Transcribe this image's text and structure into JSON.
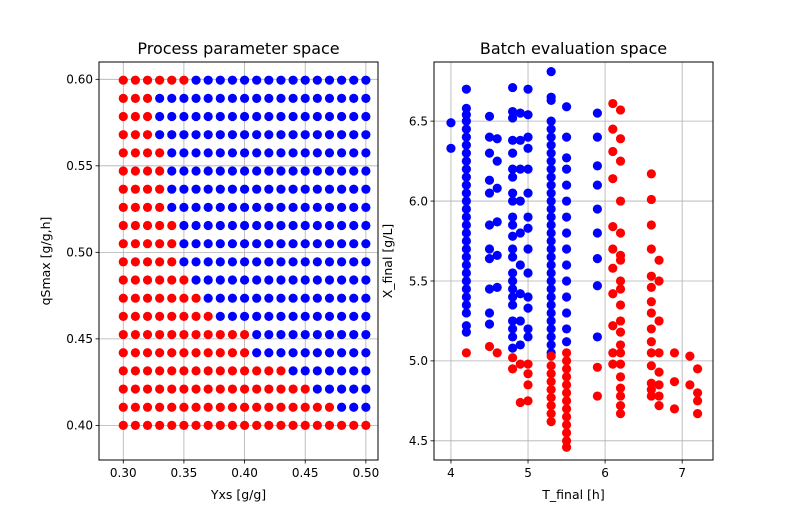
{
  "chart_data": [
    {
      "type": "scatter",
      "title": "Process parameter space",
      "xlabel": "Yxs [g/g]",
      "ylabel": "qSmax [g/g,h]",
      "xlim": [
        0.28,
        0.51
      ],
      "ylim": [
        0.38,
        0.61
      ],
      "xticks": [
        "0.30",
        "0.35",
        "0.40",
        "0.45",
        "0.50"
      ],
      "yticks": [
        "0.40",
        "0.45",
        "0.50",
        "0.55",
        "0.60"
      ],
      "grid": true,
      "colors": {
        "pass": "#0000ff",
        "fail": "#ff0000"
      },
      "grid_points": {
        "x_start": 0.3,
        "x_step": 0.01,
        "nx": 21,
        "y_start": 0.4,
        "y_step": 0.0105,
        "ny": 20
      },
      "red_count_per_row_from_bottom": [
        21,
        18,
        16,
        14,
        11,
        11,
        8,
        7,
        6,
        5,
        5,
        5,
        4,
        4,
        4,
        4,
        3,
        3,
        3,
        6
      ]
    },
    {
      "type": "scatter",
      "title": "Batch evaluation space",
      "xlabel": "T_final [h]",
      "ylabel": "X_final [g/L]",
      "xlim": [
        3.78,
        7.4
      ],
      "ylim": [
        4.38,
        6.87
      ],
      "xticks": [
        "4",
        "5",
        "6",
        "7"
      ],
      "yticks": [
        "4.5",
        "5.0",
        "5.5",
        "6.0",
        "6.5"
      ],
      "grid": true,
      "colors": {
        "pass": "#0000ff",
        "fail": "#ff0000"
      },
      "series": [
        {
          "color": "#0000ff",
          "points": [
            [
              4.0,
              6.49
            ],
            [
              4.0,
              6.33
            ],
            [
              4.2,
              6.7
            ],
            [
              4.2,
              6.58
            ],
            [
              4.2,
              6.54
            ],
            [
              4.2,
              6.5
            ],
            [
              4.2,
              6.45
            ],
            [
              4.2,
              6.4
            ],
            [
              4.2,
              6.35
            ],
            [
              4.2,
              6.3
            ],
            [
              4.2,
              6.25
            ],
            [
              4.2,
              6.2
            ],
            [
              4.2,
              6.15
            ],
            [
              4.2,
              6.1
            ],
            [
              4.2,
              6.05
            ],
            [
              4.2,
              6.0
            ],
            [
              4.2,
              5.95
            ],
            [
              4.2,
              5.9
            ],
            [
              4.2,
              5.85
            ],
            [
              4.2,
              5.8
            ],
            [
              4.2,
              5.75
            ],
            [
              4.2,
              5.7
            ],
            [
              4.2,
              5.65
            ],
            [
              4.2,
              5.6
            ],
            [
              4.2,
              5.55
            ],
            [
              4.2,
              5.5
            ],
            [
              4.2,
              5.45
            ],
            [
              4.2,
              5.4
            ],
            [
              4.2,
              5.35
            ],
            [
              4.2,
              5.3
            ],
            [
              4.2,
              5.22
            ],
            [
              4.2,
              5.18
            ],
            [
              4.5,
              6.53
            ],
            [
              4.5,
              6.4
            ],
            [
              4.5,
              6.3
            ],
            [
              4.5,
              6.13
            ],
            [
              4.5,
              6.05
            ],
            [
              4.5,
              5.85
            ],
            [
              4.5,
              5.7
            ],
            [
              4.5,
              5.64
            ],
            [
              4.5,
              5.45
            ],
            [
              4.5,
              5.3
            ],
            [
              4.5,
              5.23
            ],
            [
              4.6,
              6.39
            ],
            [
              4.6,
              6.25
            ],
            [
              4.6,
              6.08
            ],
            [
              4.6,
              5.87
            ],
            [
              4.6,
              5.66
            ],
            [
              4.6,
              5.46
            ],
            [
              4.8,
              6.71
            ],
            [
              4.8,
              6.56
            ],
            [
              4.8,
              6.52
            ],
            [
              4.8,
              6.38
            ],
            [
              4.8,
              6.3
            ],
            [
              4.8,
              6.2
            ],
            [
              4.8,
              6.15
            ],
            [
              4.8,
              6.05
            ],
            [
              4.8,
              6.0
            ],
            [
              4.8,
              5.9
            ],
            [
              4.8,
              5.85
            ],
            [
              4.8,
              5.78
            ],
            [
              4.8,
              5.7
            ],
            [
              4.8,
              5.65
            ],
            [
              4.8,
              5.55
            ],
            [
              4.8,
              5.5
            ],
            [
              4.8,
              5.45
            ],
            [
              4.8,
              5.4
            ],
            [
              4.8,
              5.35
            ],
            [
              4.8,
              5.25
            ],
            [
              4.8,
              5.2
            ],
            [
              4.8,
              5.15
            ],
            [
              4.8,
              5.08
            ],
            [
              4.9,
              6.55
            ],
            [
              4.9,
              6.38
            ],
            [
              4.9,
              6.2
            ],
            [
              4.9,
              6.0
            ],
            [
              4.9,
              5.8
            ],
            [
              4.9,
              5.6
            ],
            [
              4.9,
              5.42
            ],
            [
              4.9,
              5.25
            ],
            [
              4.9,
              5.1
            ],
            [
              5.0,
              6.7
            ],
            [
              5.0,
              6.54
            ],
            [
              5.0,
              6.4
            ],
            [
              5.0,
              6.33
            ],
            [
              5.0,
              6.2
            ],
            [
              5.0,
              6.05
            ],
            [
              5.0,
              5.9
            ],
            [
              5.0,
              5.83
            ],
            [
              5.0,
              5.7
            ],
            [
              5.0,
              5.55
            ],
            [
              5.0,
              5.4
            ],
            [
              5.0,
              5.33
            ],
            [
              5.0,
              5.2
            ],
            [
              5.0,
              5.15
            ],
            [
              5.3,
              6.81
            ],
            [
              5.3,
              6.65
            ],
            [
              5.3,
              6.63
            ],
            [
              5.3,
              6.5
            ],
            [
              5.3,
              6.45
            ],
            [
              5.3,
              6.4
            ],
            [
              5.3,
              6.35
            ],
            [
              5.3,
              6.3
            ],
            [
              5.3,
              6.25
            ],
            [
              5.3,
              6.2
            ],
            [
              5.3,
              6.15
            ],
            [
              5.3,
              6.1
            ],
            [
              5.3,
              6.05
            ],
            [
              5.3,
              6.0
            ],
            [
              5.3,
              5.95
            ],
            [
              5.3,
              5.9
            ],
            [
              5.3,
              5.85
            ],
            [
              5.3,
              5.8
            ],
            [
              5.3,
              5.75
            ],
            [
              5.3,
              5.7
            ],
            [
              5.3,
              5.65
            ],
            [
              5.3,
              5.6
            ],
            [
              5.3,
              5.55
            ],
            [
              5.3,
              5.5
            ],
            [
              5.3,
              5.45
            ],
            [
              5.3,
              5.4
            ],
            [
              5.3,
              5.35
            ],
            [
              5.3,
              5.3
            ],
            [
              5.3,
              5.25
            ],
            [
              5.3,
              5.2
            ],
            [
              5.3,
              5.15
            ],
            [
              5.3,
              5.1
            ],
            [
              5.3,
              5.05
            ],
            [
              5.5,
              6.59
            ],
            [
              5.5,
              6.4
            ],
            [
              5.5,
              6.27
            ],
            [
              5.5,
              6.2
            ],
            [
              5.5,
              6.1
            ],
            [
              5.5,
              6.0
            ],
            [
              5.5,
              5.9
            ],
            [
              5.5,
              5.8
            ],
            [
              5.5,
              5.7
            ],
            [
              5.5,
              5.6
            ],
            [
              5.5,
              5.5
            ],
            [
              5.5,
              5.4
            ],
            [
              5.5,
              5.3
            ],
            [
              5.5,
              5.2
            ],
            [
              5.5,
              5.12
            ],
            [
              5.9,
              6.55
            ],
            [
              5.9,
              6.4
            ],
            [
              5.9,
              6.22
            ],
            [
              5.9,
              6.1
            ],
            [
              5.9,
              5.95
            ],
            [
              5.9,
              5.8
            ],
            [
              5.9,
              5.64
            ],
            [
              5.9,
              5.47
            ],
            [
              5.9,
              5.15
            ]
          ]
        },
        {
          "color": "#ff0000",
          "points": [
            [
              4.2,
              5.05
            ],
            [
              4.5,
              5.09
            ],
            [
              4.6,
              5.05
            ],
            [
              4.8,
              5.02
            ],
            [
              4.8,
              4.95
            ],
            [
              4.9,
              4.98
            ],
            [
              4.9,
              4.74
            ],
            [
              5.0,
              4.98
            ],
            [
              5.0,
              4.92
            ],
            [
              5.0,
              4.85
            ],
            [
              5.0,
              4.75
            ],
            [
              5.3,
              5.03
            ],
            [
              5.3,
              4.97
            ],
            [
              5.3,
              4.92
            ],
            [
              5.3,
              4.87
            ],
            [
              5.3,
              4.82
            ],
            [
              5.3,
              4.77
            ],
            [
              5.3,
              4.72
            ],
            [
              5.3,
              4.67
            ],
            [
              5.3,
              4.62
            ],
            [
              5.5,
              5.05
            ],
            [
              5.5,
              5.0
            ],
            [
              5.5,
              4.95
            ],
            [
              5.5,
              4.9
            ],
            [
              5.5,
              4.85
            ],
            [
              5.5,
              4.8
            ],
            [
              5.5,
              4.75
            ],
            [
              5.5,
              4.7
            ],
            [
              5.5,
              4.65
            ],
            [
              5.5,
              4.6
            ],
            [
              5.5,
              4.55
            ],
            [
              5.5,
              4.5
            ],
            [
              5.5,
              4.46
            ],
            [
              5.9,
              4.96
            ],
            [
              5.9,
              4.78
            ],
            [
              6.1,
              6.61
            ],
            [
              6.1,
              6.45
            ],
            [
              6.1,
              6.31
            ],
            [
              6.1,
              6.14
            ],
            [
              6.1,
              5.84
            ],
            [
              6.1,
              5.7
            ],
            [
              6.1,
              5.58
            ],
            [
              6.1,
              5.42
            ],
            [
              6.1,
              5.22
            ],
            [
              6.1,
              5.05
            ],
            [
              6.1,
              4.98
            ],
            [
              6.2,
              6.57
            ],
            [
              6.2,
              6.39
            ],
            [
              6.2,
              6.25
            ],
            [
              6.2,
              6.0
            ],
            [
              6.2,
              5.8
            ],
            [
              6.2,
              5.66
            ],
            [
              6.2,
              5.63
            ],
            [
              6.2,
              5.5
            ],
            [
              6.2,
              5.45
            ],
            [
              6.2,
              5.35
            ],
            [
              6.2,
              5.25
            ],
            [
              6.2,
              5.18
            ],
            [
              6.2,
              5.1
            ],
            [
              6.2,
              5.05
            ],
            [
              6.2,
              4.98
            ],
            [
              6.2,
              4.9
            ],
            [
              6.2,
              4.83
            ],
            [
              6.2,
              4.78
            ],
            [
              6.2,
              4.72
            ],
            [
              6.2,
              4.67
            ],
            [
              6.6,
              6.17
            ],
            [
              6.6,
              6.01
            ],
            [
              6.6,
              5.85
            ],
            [
              6.6,
              5.7
            ],
            [
              6.6,
              5.53
            ],
            [
              6.6,
              5.46
            ],
            [
              6.6,
              5.37
            ],
            [
              6.6,
              5.3
            ],
            [
              6.6,
              5.2
            ],
            [
              6.6,
              5.12
            ],
            [
              6.6,
              5.05
            ],
            [
              6.6,
              4.97
            ],
            [
              6.6,
              4.86
            ],
            [
              6.6,
              4.82
            ],
            [
              6.6,
              4.78
            ],
            [
              6.7,
              5.63
            ],
            [
              6.7,
              5.5
            ],
            [
              6.7,
              5.25
            ],
            [
              6.7,
              5.05
            ],
            [
              6.7,
              4.93
            ],
            [
              6.7,
              4.85
            ],
            [
              6.7,
              4.78
            ],
            [
              6.7,
              4.72
            ],
            [
              6.9,
              5.05
            ],
            [
              6.9,
              4.87
            ],
            [
              6.9,
              4.7
            ],
            [
              7.1,
              5.03
            ],
            [
              7.1,
              4.85
            ],
            [
              7.2,
              4.95
            ],
            [
              7.2,
              4.8
            ],
            [
              7.2,
              4.75
            ],
            [
              7.2,
              4.67
            ]
          ]
        }
      ]
    }
  ]
}
